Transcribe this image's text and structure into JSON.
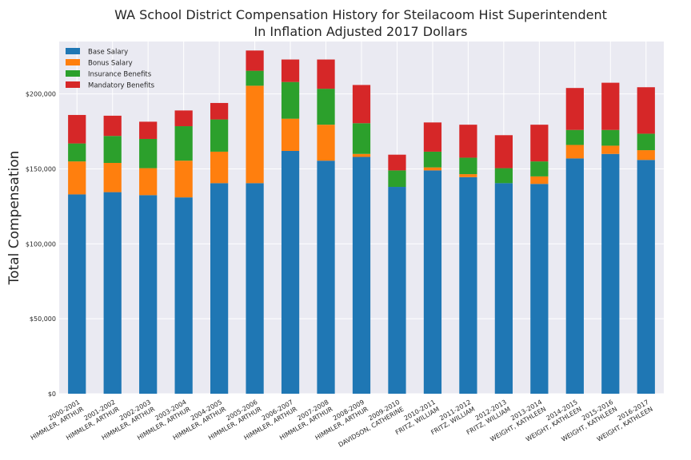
{
  "chart_data": {
    "type": "bar",
    "stacked": true,
    "title": "WA School District Compensation History for Steilacoom Hist Superintendent",
    "subtitle": "In Inflation Adjusted 2017 Dollars",
    "xlabel": "",
    "ylabel": "Total Compensation",
    "ylim": [
      0,
      235000
    ],
    "yticks": [
      0,
      50000,
      100000,
      150000,
      200000
    ],
    "ytick_labels": [
      "$0",
      "$50,000",
      "$100,000",
      "$150,000",
      "$200,000"
    ],
    "grid": true,
    "legend_position": "top-left",
    "categories": [
      "2000-2001\nHIMMLER, ARTHUR",
      "2001-2002\nHIMMLER, ARTHUR",
      "2002-2003\nHIMMLER, ARTHUR",
      "2003-2004\nHIMMLER, ARTHUR",
      "2004-2005\nHIMMLER, ARTHUR",
      "2005-2006\nHIMMLER, ARTHUR",
      "2006-2007\nHIMMLER, ARTHUR",
      "2007-2008\nHIMMLER, ARTHUR",
      "2008-2009\nHIMMLER, ARTHUR",
      "2009-2010\nDAVIDSON, CATHERINE",
      "2010-2011\nFRITZ, WILLIAM",
      "2011-2012\nFRITZ, WILLIAM",
      "2012-2013\nFRITZ, WILLIAM",
      "2013-2014\nWEIGHT, KATHLEEN",
      "2014-2015\nWEIGHT, KATHLEEN",
      "2015-2016\nWEIGHT, KATHLEEN",
      "2016-2017\nWEIGHT, KATHLEEN"
    ],
    "series": [
      {
        "name": "Base Salary",
        "color": "#1f77b4",
        "values": [
          133000,
          134500,
          132500,
          131000,
          140500,
          140500,
          162000,
          155500,
          158000,
          138000,
          149000,
          144500,
          140500,
          140000,
          157000,
          160000,
          156000
        ]
      },
      {
        "name": "Bonus Salary",
        "color": "#ff7f0e",
        "values": [
          22000,
          19500,
          18000,
          24500,
          21000,
          65000,
          21500,
          24000,
          2000,
          0,
          2000,
          2000,
          0,
          5000,
          9000,
          5500,
          6500
        ]
      },
      {
        "name": "Insurance Benefits",
        "color": "#2ca02c",
        "values": [
          12000,
          18000,
          19500,
          23000,
          21500,
          10000,
          24500,
          24000,
          20500,
          11000,
          10500,
          11000,
          10000,
          10000,
          10000,
          10500,
          11000
        ]
      },
      {
        "name": "Mandatory Benefits",
        "color": "#d62728",
        "values": [
          19000,
          13500,
          11500,
          10500,
          11000,
          13500,
          15000,
          19500,
          25500,
          10500,
          19500,
          22000,
          22000,
          24500,
          28000,
          31500,
          31000
        ]
      }
    ]
  }
}
